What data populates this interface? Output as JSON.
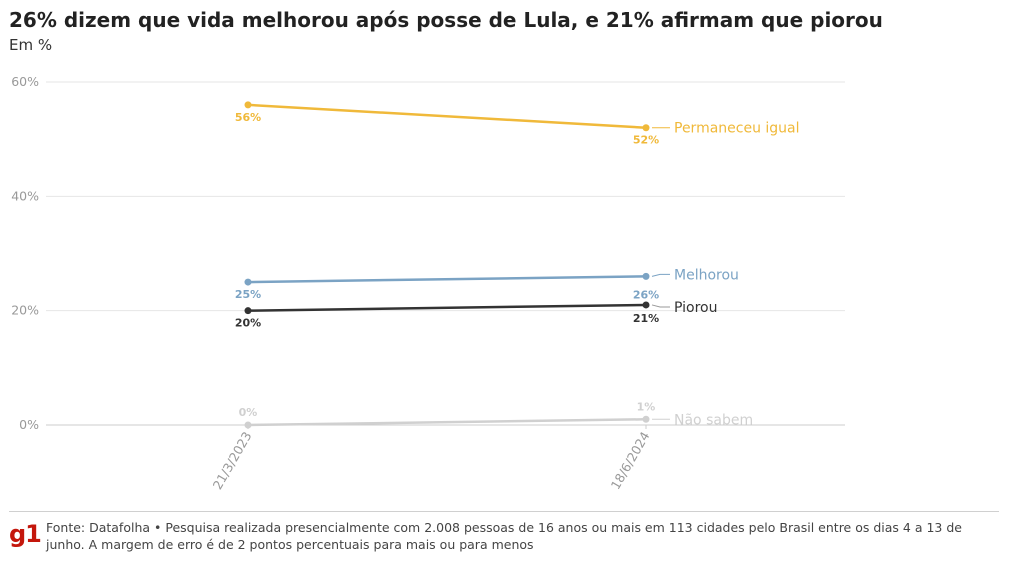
{
  "title": "26% dizem que vida melhorou após posse de Lula, e 21% afirmam que piorou",
  "subtitle": "Em %",
  "logo": "g1",
  "source": "Fonte: Datafolha • Pesquisa realizada presencialmente com 2.008 pessoas de 16 anos ou mais em 113 cidades pelo Brasil entre os dias 4 a 13 de junho. A margem de erro é de 2 pontos percentuais para mais ou para menos",
  "chart_data": {
    "type": "line",
    "title": "26% dizem que vida melhorou após posse de Lula, e 21% afirmam que piorou",
    "subtitle": "Em %",
    "x": [
      "21/3/2023",
      "18/6/2024"
    ],
    "ylim": [
      0,
      60
    ],
    "yticks": [
      0,
      20,
      40,
      60
    ],
    "ytick_labels": [
      "0%",
      "20%",
      "40%",
      "60%"
    ],
    "grid": true,
    "legend": "right-end labels",
    "series": [
      {
        "name": "Permaneceu igual",
        "values": [
          56,
          52
        ],
        "labels": [
          "56%",
          "52%"
        ],
        "color": "#f0b93a"
      },
      {
        "name": "Melhorou",
        "values": [
          25,
          26
        ],
        "labels": [
          "25%",
          "26%"
        ],
        "color": "#7ba3c4"
      },
      {
        "name": "Piorou",
        "values": [
          20,
          21
        ],
        "labels": [
          "20%",
          "21%"
        ],
        "color": "#333333"
      },
      {
        "name": "Não sabem",
        "values": [
          0,
          1
        ],
        "labels": [
          "0%",
          "1%"
        ],
        "color": "#d0d0d0"
      }
    ]
  }
}
